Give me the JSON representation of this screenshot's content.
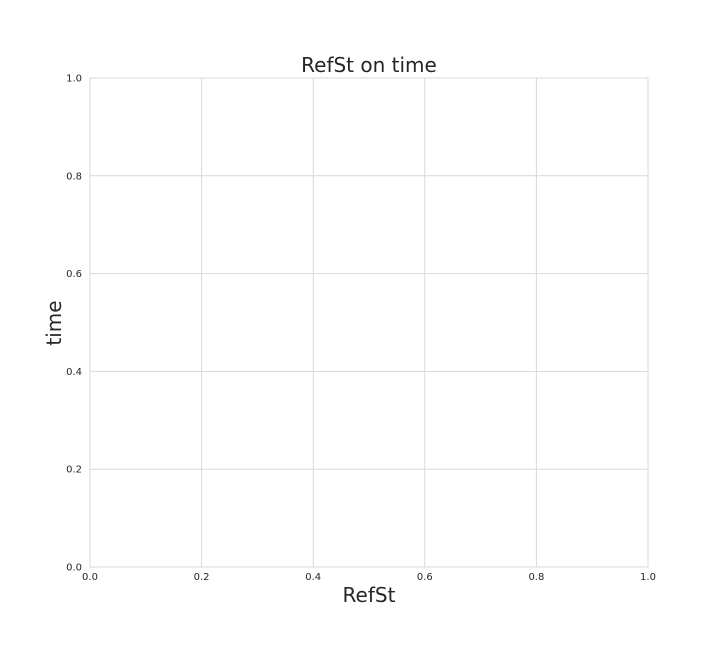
{
  "chart_data": {
    "type": "scatter",
    "title": "RefSt on time",
    "xlabel": "RefSt",
    "ylabel": "time",
    "xlim": [
      0.0,
      1.0
    ],
    "ylim": [
      0.0,
      1.0
    ],
    "xticks": [
      "0.0",
      "0.2",
      "0.4",
      "0.6",
      "0.8",
      "1.0"
    ],
    "yticks": [
      "0.0",
      "0.2",
      "0.4",
      "0.6",
      "0.8",
      "1.0"
    ],
    "series": [],
    "grid": true,
    "colors": {
      "grid": "#d9d9d9",
      "text": "#262626",
      "background": "#ffffff"
    }
  }
}
